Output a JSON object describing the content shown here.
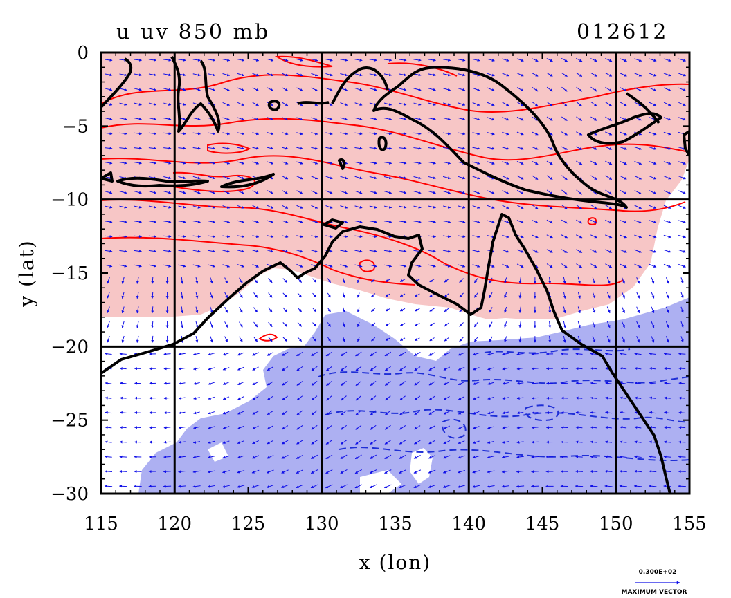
{
  "title_left": "u  uv  850  mb",
  "title_right": "012612",
  "colors": {
    "positive_fill": "#f7c6c6",
    "negative_fill": "#adb0f2",
    "positive_contour": "#ff0000",
    "negative_contour": "#1f2fd6",
    "vector": "#1010e8",
    "coast": "#000000"
  },
  "chart_data": {
    "type": "map",
    "xlabel": "x (lon)",
    "ylabel": "y (lat)",
    "xlim": [
      115,
      155
    ],
    "ylim": [
      -30,
      0
    ],
    "xticks": [
      "115",
      "120",
      "125",
      "130",
      "135",
      "140",
      "145",
      "150",
      "155"
    ],
    "yticks": [
      "0",
      "−5",
      "−10",
      "−15",
      "−20",
      "−25",
      "−30"
    ],
    "grid_lon": [
      120,
      130,
      140,
      150
    ],
    "grid_lat": [
      -10,
      -20
    ],
    "grid": true,
    "vector_key": {
      "value": "0.300E+02",
      "label": "MAXIMUM VECTOR"
    }
  }
}
